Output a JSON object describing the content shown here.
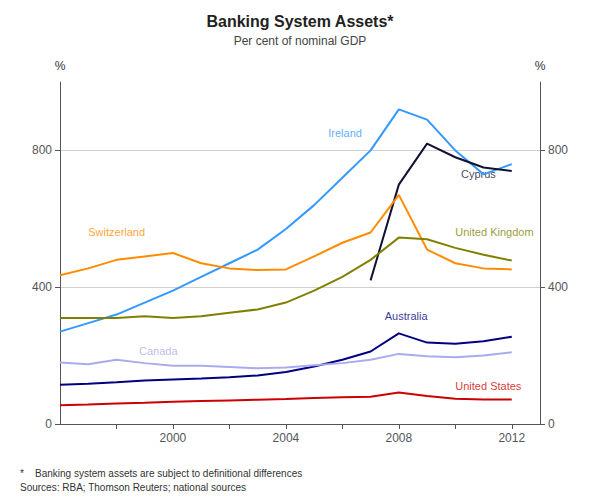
{
  "chart_data": {
    "type": "line",
    "title": "Banking System Assets*",
    "subtitle": "Per cent of nominal GDP",
    "ylabel": "%",
    "y2label": "%",
    "footnote": "*    Banking system assets are subject to definitional differences\nSources: RBA; Thomson Reuters; national sources",
    "xlim": [
      1996,
      2013
    ],
    "xticks": [
      {
        "value": 1998,
        "label": null
      },
      2000,
      {
        "value": 2002,
        "label": null
      },
      2004,
      {
        "value": 2006,
        "label": null
      },
      2008,
      {
        "value": 2010,
        "label": null
      },
      2012
    ],
    "ylim": [
      0,
      1000
    ],
    "yticks": [
      0,
      400,
      800
    ],
    "y2lim": [
      0,
      1000
    ],
    "y2ticks": [
      0,
      400,
      800
    ],
    "grid": true,
    "series": [
      {
        "name": "Ireland",
        "color": "#3399FF",
        "x": [
          1996,
          1997,
          1998,
          1999,
          2000,
          2001,
          2002,
          2003,
          2004,
          2005,
          2006,
          2007,
          2008,
          2009,
          2010,
          2011,
          2012
        ],
        "values": [
          270,
          295,
          320,
          355,
          390,
          430,
          470,
          510,
          570,
          640,
          720,
          800,
          920,
          890,
          800,
          730,
          760
        ]
      },
      {
        "name": "Cyprus",
        "color": "#111133",
        "x": [
          2007,
          2008,
          2009,
          2010,
          2011,
          2012
        ],
        "values": [
          420,
          700,
          820,
          780,
          750,
          740
        ]
      },
      {
        "name": "Switzerland",
        "color": "#FF8C00",
        "x": [
          1996,
          1997,
          1998,
          1999,
          2000,
          2001,
          2002,
          2003,
          2004,
          2005,
          2006,
          2007,
          2008,
          2009,
          2010,
          2011,
          2012
        ],
        "values": [
          435,
          455,
          480,
          490,
          500,
          470,
          455,
          450,
          452,
          490,
          530,
          560,
          670,
          510,
          470,
          455,
          452
        ]
      },
      {
        "name": "United Kingdom",
        "color": "#808000",
        "x": [
          1996,
          1997,
          1998,
          1999,
          2000,
          2001,
          2002,
          2003,
          2004,
          2005,
          2006,
          2007,
          2008,
          2009,
          2010,
          2011,
          2012
        ],
        "values": [
          310,
          310,
          310,
          315,
          310,
          315,
          325,
          335,
          355,
          390,
          430,
          480,
          545,
          540,
          515,
          495,
          478
        ]
      },
      {
        "name": "Australia",
        "color": "#000080",
        "x": [
          1996,
          1997,
          1998,
          1999,
          2000,
          2001,
          2002,
          2003,
          2004,
          2005,
          2006,
          2007,
          2008,
          2009,
          2010,
          2011,
          2012
        ],
        "values": [
          115,
          118,
          122,
          127,
          130,
          133,
          137,
          142,
          152,
          168,
          188,
          212,
          265,
          238,
          235,
          242,
          255
        ]
      },
      {
        "name": "Canada",
        "color": "#AAAAEE",
        "x": [
          1996,
          1997,
          1998,
          1999,
          2000,
          2001,
          2002,
          2003,
          2004,
          2005,
          2006,
          2007,
          2008,
          2009,
          2010,
          2011,
          2012
        ],
        "values": [
          180,
          175,
          188,
          178,
          170,
          170,
          167,
          163,
          165,
          172,
          178,
          188,
          205,
          198,
          195,
          200,
          210
        ]
      },
      {
        "name": "United States",
        "color": "#CC0000",
        "x": [
          1996,
          1997,
          1998,
          1999,
          2000,
          2001,
          2002,
          2003,
          2004,
          2005,
          2006,
          2007,
          2008,
          2009,
          2010,
          2011,
          2012
        ],
        "values": [
          55,
          57,
          60,
          62,
          65,
          67,
          69,
          71,
          73,
          76,
          78,
          80,
          92,
          82,
          74,
          72,
          72
        ]
      }
    ],
    "annotations": [
      {
        "text": "Ireland",
        "x": 2005.5,
        "y": 850,
        "color": "#3399FF"
      },
      {
        "text": "Cyprus",
        "x": 2010.2,
        "y": 730,
        "color": "#111133"
      },
      {
        "text": "Switzerland",
        "x": 1997.0,
        "y": 560,
        "color": "#FF8C00"
      },
      {
        "text": "United Kingdom",
        "x": 2010.0,
        "y": 562,
        "color": "#808000"
      },
      {
        "text": "Australia",
        "x": 2007.5,
        "y": 315,
        "color": "#000080"
      },
      {
        "text": "Canada",
        "x": 1998.8,
        "y": 212,
        "color": "#AAAAEE"
      },
      {
        "text": "United States",
        "x": 2010.0,
        "y": 112,
        "color": "#CC0000"
      }
    ]
  }
}
